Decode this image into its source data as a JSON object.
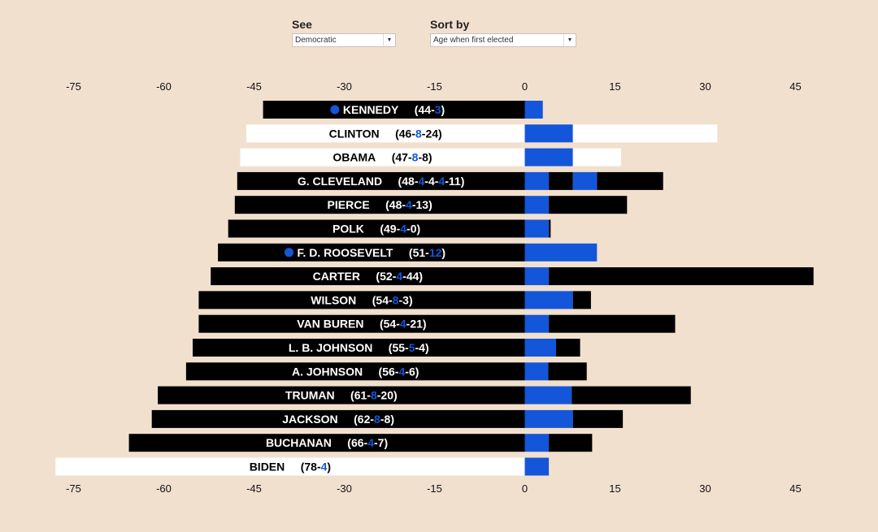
{
  "controls": {
    "see": {
      "label": "See",
      "value": "Democratic"
    },
    "sort": {
      "label": "Sort by",
      "value": "Age when first elected"
    }
  },
  "colors": {
    "background": "#f2e0cf",
    "bar": "#000000",
    "highlight_bar": "#ffffff",
    "accent": "#1456d9"
  },
  "chart_data": {
    "type": "bar",
    "orientation": "horizontal-diverging",
    "xlim": [
      -75,
      45
    ],
    "x_ticks": [
      -75,
      -60,
      -45,
      -30,
      -15,
      0,
      15,
      30,
      45
    ],
    "x_tick_labels": [
      "-75",
      "-60",
      "-45",
      "-30",
      "-15",
      "0",
      "15",
      "30",
      "45"
    ],
    "rows": [
      {
        "name": "KENNEDY",
        "nums": [
          "44",
          "3"
        ],
        "left": -43.5,
        "terms": [
          3
        ],
        "after": 0,
        "fill": "black",
        "dot": true
      },
      {
        "name": "CLINTON",
        "nums": [
          "46",
          "8",
          "24"
        ],
        "left": -46.3,
        "terms": [
          8
        ],
        "after": 24,
        "fill": "white",
        "dot": false
      },
      {
        "name": "OBAMA",
        "nums": [
          "47",
          "8",
          "8"
        ],
        "left": -47.3,
        "terms": [
          8
        ],
        "after": 8,
        "fill": "white",
        "dot": false
      },
      {
        "name": "G. CLEVELAND",
        "nums": [
          "48",
          "4",
          "4",
          "4",
          "11"
        ],
        "left": -47.8,
        "terms": [
          4,
          4,
          4
        ],
        "after": 11,
        "fill": "black",
        "dot": false,
        "blue_terms": [
          0,
          2
        ]
      },
      {
        "name": "PIERCE",
        "nums": [
          "48",
          "4",
          "13"
        ],
        "left": -48.2,
        "terms": [
          4
        ],
        "after": 13,
        "fill": "black",
        "dot": false
      },
      {
        "name": "POLK",
        "nums": [
          "49",
          "4",
          "0"
        ],
        "left": -49.3,
        "terms": [
          4
        ],
        "after": 0.3,
        "fill": "black",
        "dot": false
      },
      {
        "name": "F. D. ROOSEVELT",
        "nums": [
          "51",
          "12"
        ],
        "left": -51,
        "terms": [
          12
        ],
        "after": 0,
        "fill": "black",
        "dot": true
      },
      {
        "name": "CARTER",
        "nums": [
          "52",
          "4",
          "44"
        ],
        "left": -52.2,
        "terms": [
          4
        ],
        "after": 44,
        "fill": "black",
        "dot": false
      },
      {
        "name": "WILSON",
        "nums": [
          "54",
          "8",
          "3"
        ],
        "left": -54.2,
        "terms": [
          8
        ],
        "after": 3,
        "fill": "black",
        "dot": false
      },
      {
        "name": "VAN BUREN",
        "nums": [
          "54",
          "4",
          "21"
        ],
        "left": -54.2,
        "terms": [
          4
        ],
        "after": 21,
        "fill": "black",
        "dot": false
      },
      {
        "name": "L. B. JOHNSON",
        "nums": [
          "55",
          "5",
          "4"
        ],
        "left": -55.2,
        "terms": [
          5.2
        ],
        "after": 4,
        "fill": "black",
        "dot": false
      },
      {
        "name": "A. JOHNSON",
        "nums": [
          "56",
          "4",
          "6"
        ],
        "left": -56.3,
        "terms": [
          3.9
        ],
        "after": 6.4,
        "fill": "black",
        "dot": false
      },
      {
        "name": "TRUMAN",
        "nums": [
          "61",
          "8",
          "20"
        ],
        "left": -61,
        "terms": [
          7.8
        ],
        "after": 19.8,
        "fill": "black",
        "dot": false
      },
      {
        "name": "JACKSON",
        "nums": [
          "62",
          "8",
          "8"
        ],
        "left": -62,
        "terms": [
          8
        ],
        "after": 8.3,
        "fill": "black",
        "dot": false
      },
      {
        "name": "BUCHANAN",
        "nums": [
          "66",
          "4",
          "7"
        ],
        "left": -65.8,
        "terms": [
          4
        ],
        "after": 7.2,
        "fill": "black",
        "dot": false
      },
      {
        "name": "BIDEN",
        "nums": [
          "78",
          "4"
        ],
        "left": -78,
        "terms": [
          4
        ],
        "after": 0,
        "fill": "white",
        "dot": false
      }
    ]
  }
}
